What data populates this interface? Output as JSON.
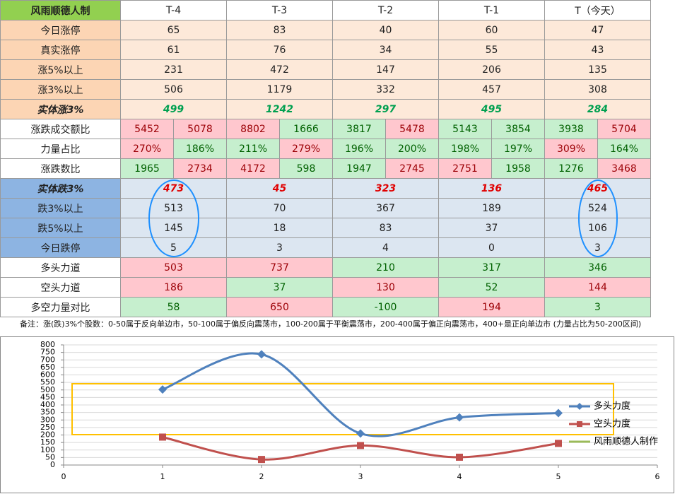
{
  "table": {
    "header": [
      "风雨顺德人制",
      "T-4",
      "T-3",
      "T-2",
      "T-1",
      "T（今天）"
    ],
    "rows": [
      {
        "label": "今日涨停",
        "values": [
          65,
          83,
          40,
          60,
          47
        ]
      },
      {
        "label": "真实涨停",
        "values": [
          61,
          76,
          34,
          55,
          43
        ]
      },
      {
        "label": "涨5%以上",
        "values": [
          231,
          472,
          147,
          206,
          135
        ]
      },
      {
        "label": "涨3%以上",
        "values": [
          506,
          1179,
          332,
          457,
          308
        ]
      },
      {
        "label": "实体涨3%",
        "values": [
          499,
          1242,
          297,
          495,
          284
        ]
      },
      {
        "label": "涨跌成交额比",
        "values": [
          [
            5452,
            5078
          ],
          [
            8802,
            1666
          ],
          [
            3817,
            5478
          ],
          [
            5143,
            3854
          ],
          [
            3938,
            5704
          ]
        ]
      },
      {
        "label": "力量占比",
        "values": [
          [
            "270%",
            "186%"
          ],
          [
            "211%",
            "279%"
          ],
          [
            "196%",
            "200%"
          ],
          [
            "198%",
            "197%"
          ],
          [
            "309%",
            "164%"
          ]
        ]
      },
      {
        "label": "涨跌数比",
        "values": [
          [
            1965,
            2734
          ],
          [
            4172,
            598
          ],
          [
            1947,
            2745
          ],
          [
            2751,
            1958
          ],
          [
            1276,
            3468
          ]
        ]
      },
      {
        "label": "实体跌3%",
        "values": [
          473,
          45,
          323,
          136,
          465
        ]
      },
      {
        "label": "跌3%以上",
        "values": [
          513,
          70,
          367,
          189,
          524
        ]
      },
      {
        "label": "跌5%以上",
        "values": [
          145,
          18,
          83,
          37,
          106
        ]
      },
      {
        "label": "今日跌停",
        "values": [
          5,
          3,
          4,
          0,
          3
        ]
      },
      {
        "label": "多头力道",
        "values": [
          503,
          737,
          210,
          317,
          346
        ]
      },
      {
        "label": "空头力道",
        "values": [
          186,
          37,
          130,
          52,
          144
        ]
      },
      {
        "label": "多空力量对比",
        "values": [
          58,
          650,
          -100,
          194,
          3
        ]
      }
    ]
  },
  "note": "备注：涨(跌)3%个股数：0-50属于反向单边市，50-100属于偏反向震荡市，100-200属于平衡震荡市，200-400属于偏正向震荡市，400+是正向单边市 (力量占比为50-200区间)",
  "chart_data": {
    "type": "line",
    "x": [
      1,
      2,
      3,
      4,
      5
    ],
    "series": [
      {
        "name": "多头力度",
        "color": "#4f81bd",
        "values": [
          503,
          737,
          210,
          317,
          346
        ]
      },
      {
        "name": "空头力度",
        "color": "#c0504d",
        "values": [
          186,
          37,
          130,
          52,
          144
        ]
      },
      {
        "name": "风雨顺德人制作",
        "color": "#9bbb59",
        "values": [
          null,
          null,
          null,
          null,
          null
        ]
      }
    ],
    "xlim": [
      0,
      6
    ],
    "xticks": [
      0,
      1,
      2,
      3,
      4,
      5,
      6
    ],
    "ylim": [
      0,
      800
    ],
    "yticks": [
      0,
      50,
      100,
      150,
      200,
      250,
      300,
      350,
      400,
      450,
      500,
      550,
      600,
      650,
      700,
      750,
      800
    ],
    "grid": true,
    "smooth": true,
    "legend": "right"
  }
}
